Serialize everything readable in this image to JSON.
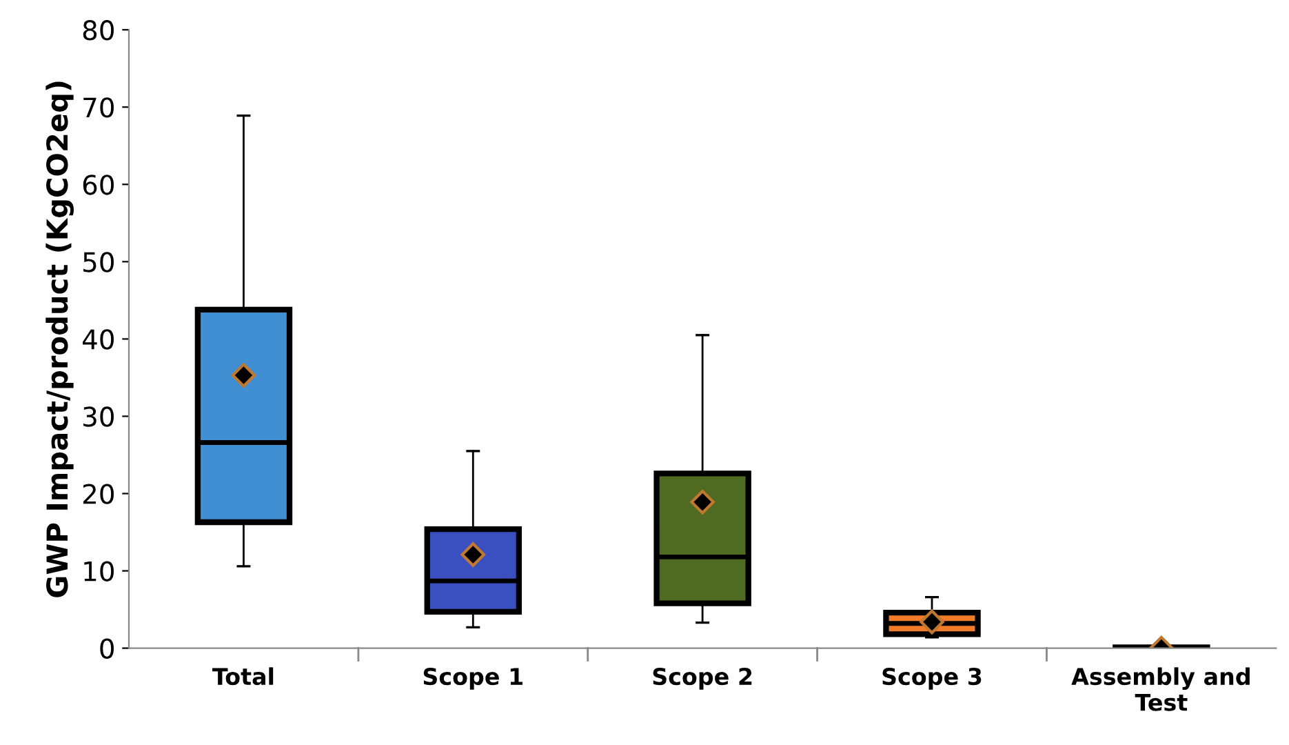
{
  "chart_data": {
    "type": "box",
    "ylabel": "GWP Impact/product (KgCO2eq)",
    "categories": [
      "Total",
      "Scope 1",
      "Scope 2",
      "Scope 3",
      "Assembly and\nTest"
    ],
    "colors": [
      "#3f8fd2",
      "#3a4fc0",
      "#4f6b22",
      "#f07c2a",
      "#f07c2a"
    ],
    "boxes": [
      {
        "low": 10.6,
        "q1": 16.3,
        "median": 26.6,
        "q3": 43.8,
        "high": 68.9,
        "mean": 35.3
      },
      {
        "low": 2.7,
        "q1": 4.7,
        "median": 8.7,
        "q3": 15.4,
        "high": 25.5,
        "mean": 12.1
      },
      {
        "low": 3.3,
        "q1": 5.8,
        "median": 11.8,
        "q3": 22.6,
        "high": 40.5,
        "mean": 18.9
      },
      {
        "low": 1.4,
        "q1": 1.8,
        "median": 3.2,
        "q3": 4.6,
        "high": 6.6,
        "mean": 3.4
      },
      {
        "low": 0,
        "q1": 0,
        "median": 0,
        "q3": 0.1,
        "high": 0.1,
        "mean": 0
      }
    ],
    "ylim": [
      0,
      80
    ],
    "yticks": [
      0,
      10,
      20,
      30,
      40,
      50,
      60,
      70,
      80
    ],
    "marker": "diamond"
  }
}
